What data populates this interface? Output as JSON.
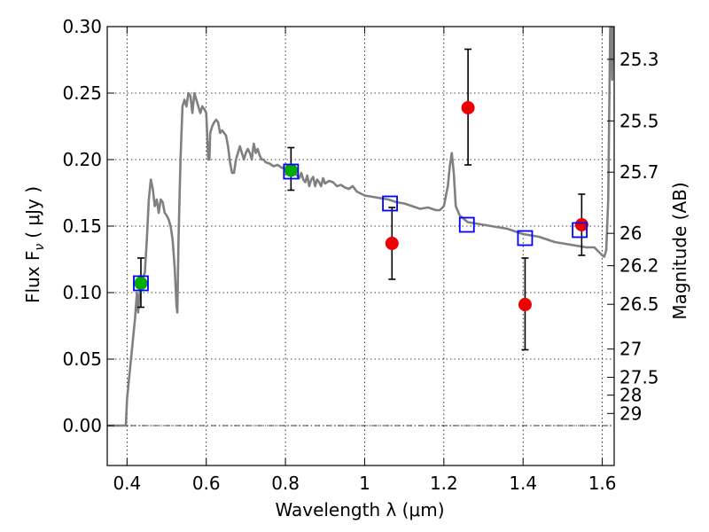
{
  "chart_data": {
    "type": "scatter",
    "xlabel": "Wavelength  λ (μm)",
    "ylabel": "Flux  F",
    "ylabel_subscript": "ν",
    "ylabel_units": "( μJy )",
    "y2label": "Magnitude (AB)",
    "xlim": [
      0.35,
      1.63
    ],
    "ylim": [
      -0.03,
      0.3
    ],
    "grid": true,
    "x_ticks": [
      {
        "value": 0.4,
        "label": "0.4"
      },
      {
        "value": 0.6,
        "label": "0.6"
      },
      {
        "value": 0.8,
        "label": "0.8"
      },
      {
        "value": 1.0,
        "label": "1"
      },
      {
        "value": 1.2,
        "label": "1.2"
      },
      {
        "value": 1.4,
        "label": "1.4"
      },
      {
        "value": 1.6,
        "label": "1.6"
      }
    ],
    "y_ticks": [
      {
        "value": 0.0,
        "label": "0.00"
      },
      {
        "value": 0.05,
        "label": "0.05"
      },
      {
        "value": 0.1,
        "label": "0.10"
      },
      {
        "value": 0.15,
        "label": "0.15"
      },
      {
        "value": 0.2,
        "label": "0.20"
      },
      {
        "value": 0.25,
        "label": "0.25"
      },
      {
        "value": 0.3,
        "label": "0.30"
      }
    ],
    "mag_ticks": [
      {
        "mag": 25.3,
        "label": "25.3"
      },
      {
        "mag": 25.5,
        "label": "25.5"
      },
      {
        "mag": 25.7,
        "label": "25.7"
      },
      {
        "mag": 26.0,
        "label": "26"
      },
      {
        "mag": 26.2,
        "label": "26.2"
      },
      {
        "mag": 26.5,
        "label": "26.5"
      },
      {
        "mag": 27.0,
        "label": "27"
      },
      {
        "mag": 27.5,
        "label": "27.5"
      },
      {
        "mag": 28.0,
        "label": "28"
      },
      {
        "mag": 29.0,
        "label": "29"
      }
    ],
    "sed_model": {
      "color": "#808080",
      "points": [
        [
          0.35,
          0.0
        ],
        [
          0.38,
          0.0
        ],
        [
          0.397,
          0.0
        ],
        [
          0.4,
          0.02
        ],
        [
          0.41,
          0.05
        ],
        [
          0.42,
          0.08
        ],
        [
          0.425,
          0.1
        ],
        [
          0.428,
          0.085
        ],
        [
          0.432,
          0.1
        ],
        [
          0.438,
          0.11
        ],
        [
          0.445,
          0.115
        ],
        [
          0.45,
          0.14
        ],
        [
          0.455,
          0.17
        ],
        [
          0.46,
          0.185
        ],
        [
          0.465,
          0.178
        ],
        [
          0.47,
          0.165
        ],
        [
          0.475,
          0.17
        ],
        [
          0.48,
          0.16
        ],
        [
          0.485,
          0.17
        ],
        [
          0.49,
          0.168
        ],
        [
          0.495,
          0.16
        ],
        [
          0.5,
          0.158
        ],
        [
          0.505,
          0.155
        ],
        [
          0.51,
          0.15
        ],
        [
          0.515,
          0.14
        ],
        [
          0.52,
          0.12
        ],
        [
          0.525,
          0.09
        ],
        [
          0.527,
          0.085
        ],
        [
          0.53,
          0.14
        ],
        [
          0.535,
          0.2
        ],
        [
          0.54,
          0.24
        ],
        [
          0.545,
          0.245
        ],
        [
          0.55,
          0.24
        ],
        [
          0.555,
          0.25
        ],
        [
          0.56,
          0.248
        ],
        [
          0.565,
          0.235
        ],
        [
          0.57,
          0.25
        ],
        [
          0.575,
          0.245
        ],
        [
          0.58,
          0.24
        ],
        [
          0.585,
          0.235
        ],
        [
          0.59,
          0.24
        ],
        [
          0.595,
          0.238
        ],
        [
          0.6,
          0.235
        ],
        [
          0.605,
          0.2
        ],
        [
          0.608,
          0.2
        ],
        [
          0.61,
          0.22
        ],
        [
          0.615,
          0.225
        ],
        [
          0.62,
          0.228
        ],
        [
          0.625,
          0.23
        ],
        [
          0.63,
          0.228
        ],
        [
          0.635,
          0.22
        ],
        [
          0.64,
          0.222
        ],
        [
          0.645,
          0.22
        ],
        [
          0.65,
          0.218
        ],
        [
          0.655,
          0.21
        ],
        [
          0.66,
          0.198
        ],
        [
          0.665,
          0.19
        ],
        [
          0.67,
          0.19
        ],
        [
          0.675,
          0.2
        ],
        [
          0.68,
          0.205
        ],
        [
          0.685,
          0.21
        ],
        [
          0.69,
          0.205
        ],
        [
          0.695,
          0.2
        ],
        [
          0.7,
          0.205
        ],
        [
          0.705,
          0.208
        ],
        [
          0.71,
          0.205
        ],
        [
          0.715,
          0.2
        ],
        [
          0.72,
          0.212
        ],
        [
          0.725,
          0.205
        ],
        [
          0.73,
          0.208
        ],
        [
          0.735,
          0.203
        ],
        [
          0.74,
          0.2
        ],
        [
          0.745,
          0.2
        ],
        [
          0.75,
          0.198
        ],
        [
          0.76,
          0.197
        ],
        [
          0.77,
          0.195
        ],
        [
          0.78,
          0.196
        ],
        [
          0.79,
          0.194
        ],
        [
          0.8,
          0.193
        ],
        [
          0.81,
          0.192
        ],
        [
          0.82,
          0.19
        ],
        [
          0.83,
          0.188
        ],
        [
          0.835,
          0.186
        ],
        [
          0.84,
          0.19
        ],
        [
          0.845,
          0.185
        ],
        [
          0.85,
          0.183
        ],
        [
          0.855,
          0.188
        ],
        [
          0.86,
          0.18
        ],
        [
          0.865,
          0.185
        ],
        [
          0.87,
          0.187
        ],
        [
          0.875,
          0.18
        ],
        [
          0.88,
          0.185
        ],
        [
          0.885,
          0.183
        ],
        [
          0.89,
          0.18
        ],
        [
          0.895,
          0.186
        ],
        [
          0.9,
          0.182
        ],
        [
          0.91,
          0.184
        ],
        [
          0.92,
          0.183
        ],
        [
          0.93,
          0.18
        ],
        [
          0.94,
          0.181
        ],
        [
          0.95,
          0.179
        ],
        [
          0.96,
          0.178
        ],
        [
          0.97,
          0.18
        ],
        [
          0.98,
          0.176
        ],
        [
          1.0,
          0.173
        ],
        [
          1.02,
          0.172
        ],
        [
          1.04,
          0.171
        ],
        [
          1.06,
          0.17
        ],
        [
          1.08,
          0.168
        ],
        [
          1.1,
          0.167
        ],
        [
          1.12,
          0.165
        ],
        [
          1.14,
          0.163
        ],
        [
          1.16,
          0.164
        ],
        [
          1.18,
          0.162
        ],
        [
          1.19,
          0.162
        ],
        [
          1.2,
          0.165
        ],
        [
          1.21,
          0.18
        ],
        [
          1.215,
          0.195
        ],
        [
          1.22,
          0.205
        ],
        [
          1.225,
          0.19
        ],
        [
          1.23,
          0.165
        ],
        [
          1.24,
          0.158
        ],
        [
          1.26,
          0.153
        ],
        [
          1.28,
          0.152
        ],
        [
          1.3,
          0.151
        ],
        [
          1.32,
          0.15
        ],
        [
          1.34,
          0.149
        ],
        [
          1.36,
          0.148
        ],
        [
          1.38,
          0.146
        ],
        [
          1.4,
          0.144
        ],
        [
          1.42,
          0.143
        ],
        [
          1.44,
          0.142
        ],
        [
          1.46,
          0.14
        ],
        [
          1.48,
          0.138
        ],
        [
          1.5,
          0.137
        ],
        [
          1.52,
          0.136
        ],
        [
          1.54,
          0.135
        ],
        [
          1.56,
          0.134
        ],
        [
          1.58,
          0.134
        ],
        [
          1.59,
          0.131
        ],
        [
          1.6,
          0.128
        ],
        [
          1.605,
          0.127
        ],
        [
          1.61,
          0.132
        ],
        [
          1.615,
          0.17
        ],
        [
          1.62,
          0.3
        ],
        [
          1.622,
          0.31
        ],
        [
          1.625,
          0.26
        ],
        [
          1.628,
          0.31
        ]
      ]
    },
    "model_photometry": {
      "marker": "open-square",
      "color": "#0000ff",
      "points": [
        {
          "x": 0.435,
          "y": 0.107
        },
        {
          "x": 0.814,
          "y": 0.191
        },
        {
          "x": 1.064,
          "y": 0.167
        },
        {
          "x": 1.258,
          "y": 0.151
        },
        {
          "x": 1.405,
          "y": 0.141
        },
        {
          "x": 1.543,
          "y": 0.147
        }
      ]
    },
    "observed_photometry": [
      {
        "x": 0.435,
        "y": 0.107,
        "yerr_low": 0.018,
        "yerr_high": 0.019,
        "color": "#00aa00"
      },
      {
        "x": 0.814,
        "y": 0.192,
        "yerr_low": 0.015,
        "yerr_high": 0.017,
        "color": "#00aa00"
      },
      {
        "x": 1.069,
        "y": 0.137,
        "yerr_low": 0.027,
        "yerr_high": 0.027,
        "color": "#ee0000"
      },
      {
        "x": 1.261,
        "y": 0.239,
        "yerr_low": 0.043,
        "yerr_high": 0.044,
        "color": "#ee0000"
      },
      {
        "x": 1.405,
        "y": 0.091,
        "yerr_low": 0.034,
        "yerr_high": 0.035,
        "color": "#ee0000"
      },
      {
        "x": 1.548,
        "y": 0.151,
        "yerr_low": 0.023,
        "yerr_high": 0.023,
        "color": "#ee0000"
      }
    ]
  }
}
